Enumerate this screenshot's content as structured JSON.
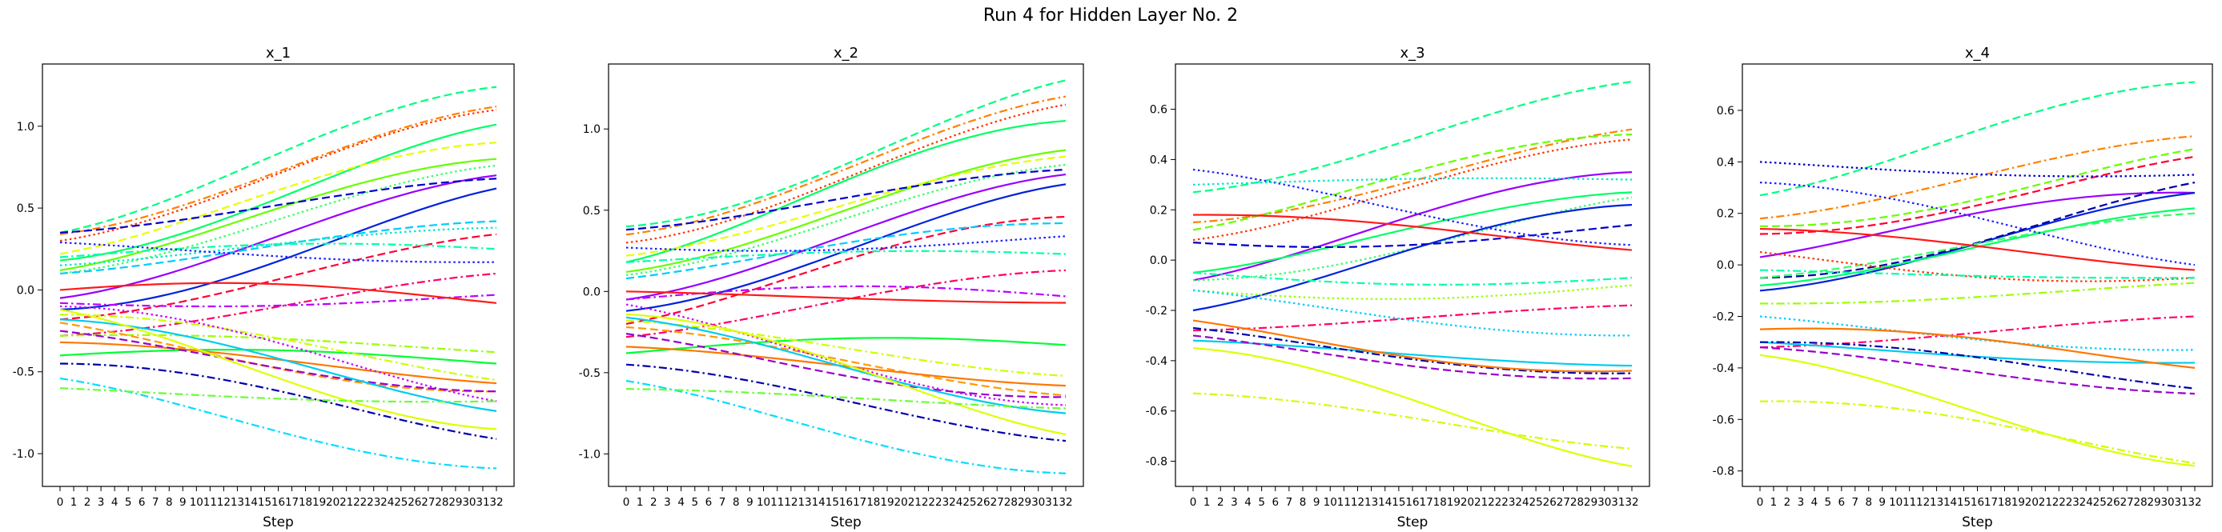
{
  "figure": {
    "title": "Run 4 for Hidden Layer No. 2"
  },
  "chart_data": [
    {
      "type": "line",
      "title": "x_1",
      "xlabel": "Step",
      "ylabel": "",
      "x_ticks": [
        0,
        1,
        2,
        3,
        4,
        5,
        6,
        7,
        8,
        9,
        10,
        11,
        12,
        13,
        14,
        15,
        16,
        17,
        18,
        19,
        20,
        21,
        22,
        23,
        24,
        25,
        26,
        27,
        28,
        29,
        30,
        31,
        32
      ],
      "ylim": [
        -1.2,
        1.38
      ],
      "y_ticks": [
        -1.0,
        -0.5,
        0.0,
        0.5,
        1.0
      ],
      "grid": false,
      "series": [
        {
          "color": "#00ff80",
          "style": "dashed",
          "values": [
            0.35,
            1.24
          ]
        },
        {
          "color": "#ff3300",
          "style": "dotted",
          "values": [
            0.3,
            1.1
          ]
        },
        {
          "color": "#ff8000",
          "style": "dashdot",
          "values": [
            0.34,
            1.12
          ]
        },
        {
          "color": "#00ff66",
          "style": "solid",
          "values": [
            0.18,
            1.01
          ]
        },
        {
          "color": "#e6ff00",
          "style": "dashed",
          "values": [
            0.22,
            0.9
          ]
        },
        {
          "color": "#66ff00",
          "style": "solid",
          "values": [
            0.12,
            0.8
          ]
        },
        {
          "color": "#33ff66",
          "style": "dotted",
          "values": [
            0.1,
            0.76
          ]
        },
        {
          "color": "#9900ff",
          "style": "solid",
          "values": [
            -0.05,
            0.7
          ]
        },
        {
          "color": "#0000cc",
          "style": "dashed",
          "values": [
            0.35,
            0.68
          ]
        },
        {
          "color": "#0022dd",
          "style": "solid",
          "values": [
            -0.12,
            0.62
          ]
        },
        {
          "color": "#00ccff",
          "style": "dashed",
          "values": [
            0.1,
            0.42
          ]
        },
        {
          "color": "#00e5cc",
          "style": "dotted",
          "values": [
            0.15,
            0.38
          ]
        },
        {
          "color": "#ff0033",
          "style": "dashed",
          "values": [
            -0.18,
            0.34
          ]
        },
        {
          "color": "#00ffaa",
          "style": "dashdot",
          "values": [
            0.2,
            0.25
          ]
        },
        {
          "color": "#1f1fff",
          "style": "dotted",
          "values": [
            0.29,
            0.17
          ]
        },
        {
          "color": "#ff0066",
          "style": "dashdot",
          "values": [
            -0.28,
            0.1
          ]
        },
        {
          "color": "#bb00ff",
          "style": "dashdot",
          "values": [
            -0.08,
            -0.03
          ]
        },
        {
          "color": "#ff1a1a",
          "style": "solid",
          "values": [
            0.0,
            -0.08
          ]
        },
        {
          "color": "#99ff00",
          "style": "dashdot",
          "values": [
            -0.28,
            -0.38
          ]
        },
        {
          "color": "#00ff33",
          "style": "solid",
          "values": [
            -0.4,
            -0.45
          ]
        },
        {
          "color": "#ccff00",
          "style": "dashdot",
          "values": [
            -0.15,
            -0.55
          ]
        },
        {
          "color": "#ff9900",
          "style": "dashed",
          "values": [
            -0.2,
            -0.62
          ]
        },
        {
          "color": "#ff7700",
          "style": "solid",
          "values": [
            -0.32,
            -0.57
          ]
        },
        {
          "color": "#cc00ff",
          "style": "dotted",
          "values": [
            -0.1,
            -0.68
          ]
        },
        {
          "color": "#9900cc",
          "style": "dashed",
          "values": [
            -0.25,
            -0.62
          ]
        },
        {
          "color": "#00ccee",
          "style": "solid",
          "values": [
            -0.18,
            -0.74
          ]
        },
        {
          "color": "#ddff00",
          "style": "solid",
          "values": [
            -0.12,
            -0.85
          ]
        },
        {
          "color": "#0000aa",
          "style": "dashdot",
          "values": [
            -0.45,
            -0.91
          ]
        },
        {
          "color": "#00ddff",
          "style": "dashdot",
          "values": [
            -0.54,
            -1.09
          ]
        },
        {
          "color": "#66ff33",
          "style": "dashdot",
          "values": [
            -0.6,
            -0.68
          ]
        }
      ]
    },
    {
      "type": "line",
      "title": "x_2",
      "xlabel": "Step",
      "ylabel": "",
      "x_ticks": [
        0,
        1,
        2,
        3,
        4,
        5,
        6,
        7,
        8,
        9,
        10,
        11,
        12,
        13,
        14,
        15,
        16,
        17,
        18,
        19,
        20,
        21,
        22,
        23,
        24,
        25,
        26,
        27,
        28,
        29,
        30,
        31,
        32
      ],
      "ylim": [
        -1.2,
        1.4
      ],
      "y_ticks": [
        -1.0,
        -0.5,
        0.0,
        0.5,
        1.0
      ],
      "grid": false,
      "series": [
        {
          "color": "#00ff80",
          "style": "dashed",
          "values": [
            0.4,
            1.3
          ]
        },
        {
          "color": "#ff8000",
          "style": "dashdot",
          "values": [
            0.35,
            1.2
          ]
        },
        {
          "color": "#ff3300",
          "style": "dotted",
          "values": [
            0.3,
            1.15
          ]
        },
        {
          "color": "#00ff66",
          "style": "solid",
          "values": [
            0.18,
            1.05
          ]
        },
        {
          "color": "#66ff00",
          "style": "solid",
          "values": [
            0.12,
            0.87
          ]
        },
        {
          "color": "#e6ff00",
          "style": "dashed",
          "values": [
            0.22,
            0.83
          ]
        },
        {
          "color": "#33ff66",
          "style": "dotted",
          "values": [
            0.1,
            0.78
          ]
        },
        {
          "color": "#0000cc",
          "style": "dashed",
          "values": [
            0.38,
            0.75
          ]
        },
        {
          "color": "#9900ff",
          "style": "solid",
          "values": [
            -0.05,
            0.72
          ]
        },
        {
          "color": "#0022dd",
          "style": "solid",
          "values": [
            -0.12,
            0.66
          ]
        },
        {
          "color": "#ff0033",
          "style": "dashed",
          "values": [
            -0.2,
            0.46
          ]
        },
        {
          "color": "#00ccff",
          "style": "dashed",
          "values": [
            0.08,
            0.42
          ]
        },
        {
          "color": "#1f1fff",
          "style": "dotted",
          "values": [
            0.27,
            0.34
          ]
        },
        {
          "color": "#00ffaa",
          "style": "dashdot",
          "values": [
            0.18,
            0.23
          ]
        },
        {
          "color": "#ff0066",
          "style": "dashdot",
          "values": [
            -0.28,
            0.13
          ]
        },
        {
          "color": "#bb00ff",
          "style": "dashdot",
          "values": [
            -0.05,
            -0.03
          ]
        },
        {
          "color": "#ff1a1a",
          "style": "solid",
          "values": [
            0.0,
            -0.07
          ]
        },
        {
          "color": "#00ff33",
          "style": "solid",
          "values": [
            -0.38,
            -0.33
          ]
        },
        {
          "color": "#ccff00",
          "style": "dashdot",
          "values": [
            -0.18,
            -0.52
          ]
        },
        {
          "color": "#ff9900",
          "style": "dashed",
          "values": [
            -0.22,
            -0.64
          ]
        },
        {
          "color": "#ff7700",
          "style": "solid",
          "values": [
            -0.34,
            -0.58
          ]
        },
        {
          "color": "#cc00ff",
          "style": "dotted",
          "values": [
            -0.08,
            -0.7
          ]
        },
        {
          "color": "#9900cc",
          "style": "dashed",
          "values": [
            -0.26,
            -0.65
          ]
        },
        {
          "color": "#00ccee",
          "style": "solid",
          "values": [
            -0.16,
            -0.75
          ]
        },
        {
          "color": "#ddff00",
          "style": "solid",
          "values": [
            -0.14,
            -0.88
          ]
        },
        {
          "color": "#0000aa",
          "style": "dashdot",
          "values": [
            -0.45,
            -0.92
          ]
        },
        {
          "color": "#00ddff",
          "style": "dashdot",
          "values": [
            -0.55,
            -1.12
          ]
        },
        {
          "color": "#66ff33",
          "style": "dashdot",
          "values": [
            -0.6,
            -0.72
          ]
        }
      ]
    },
    {
      "type": "line",
      "title": "x_3",
      "xlabel": "Step",
      "ylabel": "",
      "x_ticks": [
        0,
        1,
        2,
        3,
        4,
        5,
        6,
        7,
        8,
        9,
        10,
        11,
        12,
        13,
        14,
        15,
        16,
        17,
        18,
        19,
        20,
        21,
        22,
        23,
        24,
        25,
        26,
        27,
        28,
        29,
        30,
        31,
        32
      ],
      "ylim": [
        -0.9,
        0.78
      ],
      "y_ticks": [
        -0.8,
        -0.6,
        -0.4,
        -0.2,
        0.0,
        0.2,
        0.4,
        0.6
      ],
      "grid": false,
      "series": [
        {
          "color": "#00ff80",
          "style": "dashed",
          "values": [
            0.27,
            0.71
          ]
        },
        {
          "color": "#ff8000",
          "style": "dashdot",
          "values": [
            0.15,
            0.52
          ]
        },
        {
          "color": "#66ff00",
          "style": "dashed",
          "values": [
            0.12,
            0.5
          ]
        },
        {
          "color": "#ff3300",
          "style": "dotted",
          "values": [
            0.08,
            0.48
          ]
        },
        {
          "color": "#9900ff",
          "style": "solid",
          "values": [
            -0.08,
            0.35
          ]
        },
        {
          "color": "#00ff66",
          "style": "solid",
          "values": [
            -0.05,
            0.27
          ]
        },
        {
          "color": "#33ff66",
          "style": "dotted",
          "values": [
            -0.08,
            0.25
          ]
        },
        {
          "color": "#0022dd",
          "style": "solid",
          "values": [
            -0.2,
            0.22
          ]
        },
        {
          "color": "#0000cc",
          "style": "dashed",
          "values": [
            0.07,
            0.14
          ]
        },
        {
          "color": "#1f1fff",
          "style": "dotted",
          "values": [
            0.36,
            0.06
          ]
        },
        {
          "color": "#ff1a1a",
          "style": "solid",
          "values": [
            0.18,
            0.04
          ]
        },
        {
          "color": "#00e5cc",
          "style": "dotted",
          "values": [
            0.3,
            0.32
          ]
        },
        {
          "color": "#00ffaa",
          "style": "dashdot",
          "values": [
            -0.05,
            -0.07
          ]
        },
        {
          "color": "#99ff00",
          "style": "dotted",
          "values": [
            -0.12,
            -0.1
          ]
        },
        {
          "color": "#00ccff",
          "style": "dotted",
          "values": [
            -0.12,
            -0.3
          ]
        },
        {
          "color": "#ff0066",
          "style": "dashdot",
          "values": [
            -0.28,
            -0.18
          ]
        },
        {
          "color": "#00ccee",
          "style": "solid",
          "values": [
            -0.32,
            -0.42
          ]
        },
        {
          "color": "#0000aa",
          "style": "dashdot",
          "values": [
            -0.27,
            -0.45
          ]
        },
        {
          "color": "#ff7700",
          "style": "solid",
          "values": [
            -0.24,
            -0.44
          ]
        },
        {
          "color": "#9900cc",
          "style": "dashed",
          "values": [
            -0.3,
            -0.47
          ]
        },
        {
          "color": "#ccff00",
          "style": "dashdot",
          "values": [
            -0.53,
            -0.75
          ]
        },
        {
          "color": "#ddff00",
          "style": "solid",
          "values": [
            -0.35,
            -0.82
          ]
        }
      ]
    },
    {
      "type": "line",
      "title": "x_4",
      "xlabel": "Step",
      "ylabel": "",
      "x_ticks": [
        0,
        1,
        2,
        3,
        4,
        5,
        6,
        7,
        8,
        9,
        10,
        11,
        12,
        13,
        14,
        15,
        16,
        17,
        18,
        19,
        20,
        21,
        22,
        23,
        24,
        25,
        26,
        27,
        28,
        29,
        30,
        31,
        32
      ],
      "ylim": [
        -0.86,
        0.78
      ],
      "y_ticks": [
        -0.8,
        -0.6,
        -0.4,
        -0.2,
        0.0,
        0.2,
        0.4,
        0.6
      ],
      "grid": false,
      "series": [
        {
          "color": "#00ff80",
          "style": "dashed",
          "values": [
            0.27,
            0.71
          ]
        },
        {
          "color": "#ff8000",
          "style": "dashdot",
          "values": [
            0.18,
            0.5
          ]
        },
        {
          "color": "#66ff00",
          "style": "dashed",
          "values": [
            0.15,
            0.45
          ]
        },
        {
          "color": "#ff0033",
          "style": "dashed",
          "values": [
            0.12,
            0.42
          ]
        },
        {
          "color": "#0000cc",
          "style": "dotted",
          "values": [
            0.4,
            0.35
          ]
        },
        {
          "color": "#9900ff",
          "style": "solid",
          "values": [
            0.03,
            0.28
          ]
        },
        {
          "color": "#0022dd",
          "style": "solid",
          "values": [
            -0.1,
            0.28
          ]
        },
        {
          "color": "#0000aa",
          "style": "dashed",
          "values": [
            -0.05,
            0.32
          ]
        },
        {
          "color": "#00ff66",
          "style": "solid",
          "values": [
            -0.08,
            0.22
          ]
        },
        {
          "color": "#33ff66",
          "style": "dashed",
          "values": [
            -0.05,
            0.2
          ]
        },
        {
          "color": "#1f1fff",
          "style": "dotted",
          "values": [
            0.32,
            0.0
          ]
        },
        {
          "color": "#ff1a1a",
          "style": "solid",
          "values": [
            0.14,
            -0.02
          ]
        },
        {
          "color": "#ff3300",
          "style": "dotted",
          "values": [
            0.05,
            -0.05
          ]
        },
        {
          "color": "#00ffaa",
          "style": "dashdot",
          "values": [
            -0.02,
            -0.05
          ]
        },
        {
          "color": "#99ff00",
          "style": "dashdot",
          "values": [
            -0.15,
            -0.07
          ]
        },
        {
          "color": "#00ccff",
          "style": "dotted",
          "values": [
            -0.2,
            -0.33
          ]
        },
        {
          "color": "#ff0066",
          "style": "dashdot",
          "values": [
            -0.32,
            -0.2
          ]
        },
        {
          "color": "#00ccee",
          "style": "solid",
          "values": [
            -0.3,
            -0.38
          ]
        },
        {
          "color": "#ff7700",
          "style": "solid",
          "values": [
            -0.25,
            -0.4
          ]
        },
        {
          "color": "#0000aa",
          "style": "dashdot",
          "values": [
            -0.3,
            -0.48
          ]
        },
        {
          "color": "#9900cc",
          "style": "dashed",
          "values": [
            -0.32,
            -0.5
          ]
        },
        {
          "color": "#ccff00",
          "style": "dashdot",
          "values": [
            -0.53,
            -0.77
          ]
        },
        {
          "color": "#ddff00",
          "style": "solid",
          "values": [
            -0.35,
            -0.78
          ]
        }
      ]
    }
  ]
}
